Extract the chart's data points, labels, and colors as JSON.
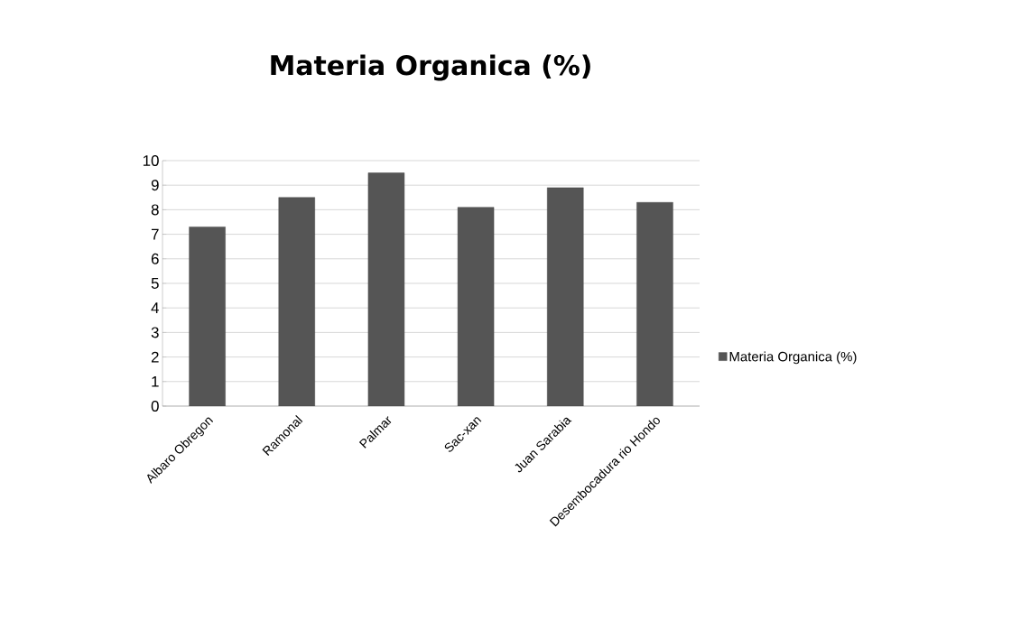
{
  "chart_data": {
    "type": "bar",
    "title": "Materia Organica (%)",
    "categories": [
      "Albaro Obregon",
      "Ramonal",
      "Palmar",
      "Sac-xan",
      "Juan Sarabia",
      "Desembocadura rio Hondo"
    ],
    "series": [
      {
        "name": "Materia Organica (%)",
        "color": "#555555",
        "values": [
          7.3,
          8.5,
          9.5,
          8.1,
          8.9,
          8.3
        ]
      }
    ],
    "ylim": [
      0,
      10
    ],
    "yticks": [
      0,
      1,
      2,
      3,
      4,
      5,
      6,
      7,
      8,
      9,
      10
    ],
    "grid": "y",
    "legend": "right"
  }
}
